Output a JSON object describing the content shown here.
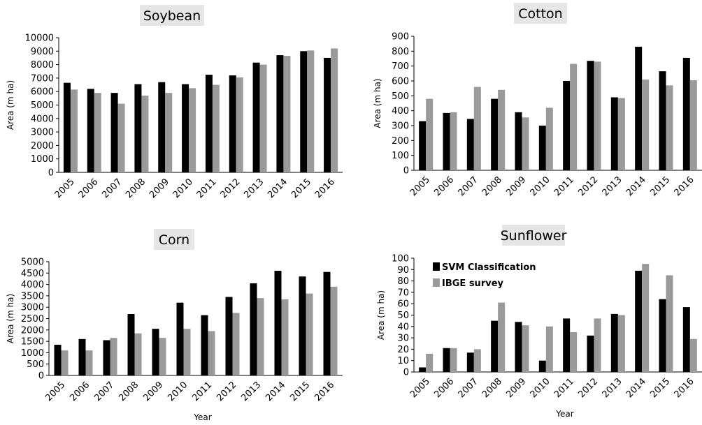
{
  "chart_data": [
    {
      "type": "bar",
      "title": "Soybean",
      "ylabel": "Area (m ha)",
      "xlabel": "",
      "ylim": [
        0,
        10000
      ],
      "yticks": [
        0,
        1000,
        2000,
        3000,
        4000,
        5000,
        6000,
        7000,
        8000,
        9000,
        10000
      ],
      "categories": [
        "2005",
        "2006",
        "2007",
        "2008",
        "2009",
        "2010",
        "2011",
        "2012",
        "2013",
        "2014",
        "2015",
        "2016"
      ],
      "series": [
        {
          "values": [
            6650,
            6200,
            5900,
            6550,
            6700,
            6550,
            7250,
            7200,
            8150,
            8700,
            9000,
            8500
          ],
          "color": "#000000"
        },
        {
          "values": [
            6150,
            5900,
            5100,
            5700,
            5900,
            6250,
            6500,
            7050,
            8000,
            8650,
            9050,
            9200
          ],
          "color": "#9a9a9a"
        }
      ],
      "legend": false
    },
    {
      "type": "bar",
      "title": "Cotton",
      "ylabel": "Area (m ha)",
      "xlabel": "",
      "ylim": [
        0,
        900
      ],
      "yticks": [
        0,
        100,
        200,
        300,
        400,
        500,
        600,
        700,
        800,
        900
      ],
      "categories": [
        "2005",
        "2006",
        "2007",
        "2008",
        "2009",
        "2010",
        "2011",
        "2012",
        "2013",
        "2014",
        "2015",
        "2016"
      ],
      "series": [
        {
          "values": [
            330,
            385,
            345,
            480,
            390,
            300,
            600,
            735,
            490,
            830,
            665,
            755
          ],
          "color": "#000000"
        },
        {
          "values": [
            480,
            390,
            560,
            540,
            355,
            420,
            715,
            730,
            485,
            610,
            570,
            605
          ],
          "color": "#9a9a9a"
        }
      ],
      "legend": false
    },
    {
      "type": "bar",
      "title": "Corn",
      "ylabel": "Area (m ha)",
      "xlabel": "Year",
      "ylim": [
        0,
        5000
      ],
      "yticks": [
        0,
        500,
        1000,
        1500,
        2000,
        2500,
        3000,
        3500,
        4000,
        4500,
        5000
      ],
      "categories": [
        "2005",
        "2006",
        "2007",
        "2008",
        "2009",
        "2010",
        "2011",
        "2012",
        "2013",
        "2014",
        "2015",
        "2016"
      ],
      "series": [
        {
          "values": [
            1350,
            1600,
            1550,
            2700,
            2050,
            3200,
            2650,
            3450,
            4050,
            4600,
            4350,
            4550
          ],
          "color": "#000000"
        },
        {
          "values": [
            1100,
            1100,
            1650,
            1850,
            1650,
            2050,
            1950,
            2750,
            3400,
            3350,
            3600,
            3900
          ],
          "color": "#9a9a9a"
        }
      ],
      "legend": false
    },
    {
      "type": "bar",
      "title": "Sunflower",
      "ylabel": "Area (m ha)",
      "xlabel": "Year",
      "ylim": [
        0,
        100
      ],
      "yticks": [
        0,
        10,
        20,
        30,
        40,
        50,
        60,
        70,
        80,
        90,
        100
      ],
      "categories": [
        "2005",
        "2006",
        "2007",
        "2008",
        "2009",
        "2010",
        "2011",
        "2012",
        "2013",
        "2014",
        "2015",
        "2016"
      ],
      "series": [
        {
          "name": "SVM Classification",
          "values": [
            4,
            21,
            17,
            45,
            44,
            10,
            47,
            32,
            51,
            89,
            64,
            57
          ],
          "color": "#000000"
        },
        {
          "name": "IBGE survey",
          "values": [
            16,
            21,
            20,
            61,
            41,
            40,
            35,
            47,
            50,
            95,
            85,
            29
          ],
          "color": "#9a9a9a"
        }
      ],
      "legend": true,
      "legend_position": "top-left"
    }
  ]
}
